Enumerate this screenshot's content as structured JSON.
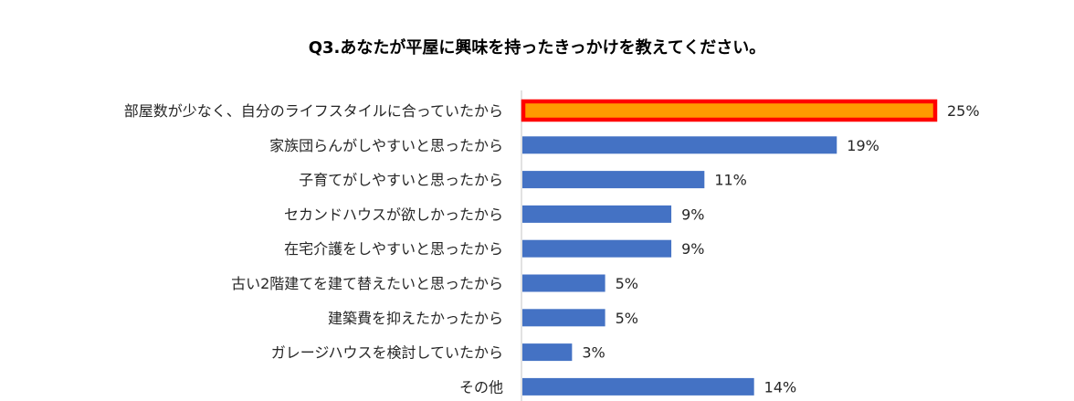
{
  "chart_data": {
    "type": "bar",
    "orientation": "horizontal",
    "title": "Q3.あなたが平屋に興味を持ったきっかけを教えてください。",
    "xlabel": "",
    "ylabel": "",
    "xlim": [
      0,
      25
    ],
    "grid": false,
    "legend": "none",
    "value_suffix": "%",
    "default_color": "#4472C4",
    "highlight_color": "#FF9900",
    "highlight_border_color": "#FF0000",
    "highlight_index": 0,
    "categories": [
      "部屋数が少なく、自分のライフスタイルに合っていたから",
      "家族団らんがしやすいと思ったから",
      "子育てがしやすいと思ったから",
      "セカンドハウスが欲しかったから",
      "在宅介護をしやすいと思ったから",
      "古い2階建てを建て替えたいと思ったから",
      "建築費を抑えたかったから",
      "ガレージハウスを検討していたから",
      "その他"
    ],
    "values": [
      25,
      19,
      11,
      9,
      9,
      5,
      5,
      3,
      14
    ]
  }
}
